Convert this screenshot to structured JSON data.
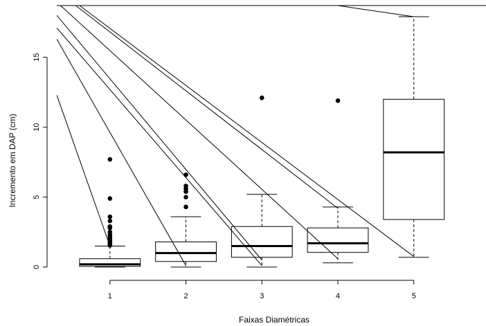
{
  "chart_data": {
    "type": "boxplot",
    "xlabel": "Faixas Diamétricas",
    "ylabel": "Incremento em DAP (cm)",
    "categories": [
      "1",
      "2",
      "3",
      "4",
      "5"
    ],
    "ylim": [
      -0.7,
      18.7
    ],
    "y_ticks": [
      0,
      5,
      10,
      15
    ],
    "y_tick_labels": [
      "0",
      "5",
      "10",
      "15"
    ],
    "grid": false,
    "boxes": [
      {
        "category": "1",
        "whisker_low": 0.0,
        "q1": 0.05,
        "median": 0.2,
        "q3": 0.6,
        "whisker_high": 1.5,
        "outliers": [
          1.55,
          1.65,
          1.7,
          1.8,
          1.9,
          2.0,
          2.1,
          2.2,
          2.3,
          2.5,
          2.8,
          2.9,
          3.3,
          3.6,
          4.9,
          7.7
        ]
      },
      {
        "category": "2",
        "whisker_low": 0.0,
        "q1": 0.4,
        "median": 1.0,
        "q3": 1.8,
        "whisker_high": 3.6,
        "outliers": [
          4.3,
          5.0,
          5.4,
          5.6,
          5.8,
          6.6
        ]
      },
      {
        "category": "3",
        "whisker_low": 0.0,
        "q1": 0.7,
        "median": 1.5,
        "q3": 2.9,
        "whisker_high": 5.2,
        "outliers": [
          12.1
        ]
      },
      {
        "category": "4",
        "whisker_low": 0.3,
        "q1": 1.05,
        "median": 1.7,
        "q3": 2.8,
        "whisker_high": 4.3,
        "outliers": [
          11.9
        ]
      },
      {
        "category": "5",
        "whisker_low": 0.7,
        "q1": 3.4,
        "median": 8.2,
        "q3": 12.0,
        "whisker_high": 17.9,
        "outliers": []
      }
    ],
    "lines": [
      {
        "points": [
          [
            0.3,
            12.3
          ],
          [
            1.0,
            1.5
          ]
        ]
      },
      {
        "points": [
          [
            0.3,
            16.3
          ],
          [
            2.0,
            0.1
          ]
        ]
      },
      {
        "points": [
          [
            0.3,
            17.1
          ],
          [
            3.0,
            0.1
          ]
        ]
      },
      {
        "points": [
          [
            0.3,
            18.0
          ],
          [
            3.0,
            0.5
          ]
        ]
      },
      {
        "points": [
          [
            0.35,
            18.7
          ],
          [
            4.0,
            0.6
          ]
        ]
      },
      {
        "points": [
          [
            0.55,
            18.7
          ],
          [
            4.0,
            4.2
          ]
        ]
      },
      {
        "points": [
          [
            0.6,
            18.7
          ],
          [
            5.0,
            0.75
          ]
        ]
      },
      {
        "points": [
          [
            4.0,
            18.7
          ],
          [
            5.0,
            17.9
          ]
        ]
      }
    ]
  }
}
